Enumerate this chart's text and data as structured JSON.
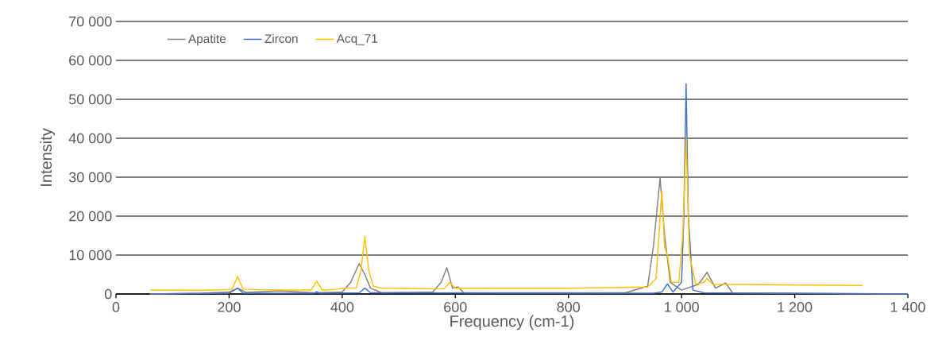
{
  "chart_data": {
    "type": "line",
    "xlabel": "Frequency (cm-1)",
    "ylabel": "Intensity",
    "xlim": [
      0,
      1400
    ],
    "ylim": [
      0,
      70000
    ],
    "xticks": [
      0,
      200,
      400,
      600,
      800,
      {
        "value": 1000,
        "label": "1 000"
      },
      {
        "value": 1200,
        "label": "1 200"
      },
      {
        "value": 1400,
        "label": "1 400"
      }
    ],
    "yticks": [
      0,
      {
        "value": 10000,
        "label": "10 000"
      },
      {
        "value": 20000,
        "label": "20 000"
      },
      {
        "value": 30000,
        "label": "30 000"
      },
      {
        "value": 40000,
        "label": "40 000"
      },
      {
        "value": 50000,
        "label": "50 000"
      },
      {
        "value": 60000,
        "label": "60 000"
      },
      {
        "value": 70000,
        "label": "70 000"
      }
    ],
    "grid": "y",
    "legend": "top left",
    "series": [
      {
        "name": "Apatite",
        "color": "#808080",
        "x": [
          60,
          150,
          200,
          215,
          230,
          290,
          350,
          400,
          415,
          430,
          440,
          450,
          470,
          560,
          575,
          585,
          595,
          605,
          615,
          900,
          940,
          950,
          962,
          970,
          980,
          1000,
          1030,
          1045,
          1060,
          1078,
          1090,
          1400
        ],
        "values": [
          0,
          200,
          500,
          1500,
          400,
          800,
          300,
          500,
          3000,
          7800,
          5000,
          1500,
          300,
          500,
          3000,
          6800,
          1500,
          1800,
          300,
          300,
          2000,
          12000,
          29800,
          15000,
          3000,
          1000,
          2500,
          5600,
          1500,
          2800,
          300,
          0
        ]
      },
      {
        "name": "Zircon",
        "color": "#4472c4",
        "x": [
          60,
          200,
          215,
          225,
          350,
          355,
          360,
          430,
          440,
          450,
          950,
          965,
          975,
          985,
          1000,
          1004,
          1008,
          1012,
          1020,
          1040,
          1400
        ],
        "values": [
          0,
          200,
          1500,
          200,
          200,
          600,
          200,
          300,
          1500,
          300,
          200,
          500,
          2600,
          500,
          3000,
          20000,
          54000,
          20000,
          1000,
          300,
          0
        ]
      },
      {
        "name": "Acq_71",
        "color": "#ffc000",
        "x": [
          60,
          150,
          205,
          215,
          225,
          300,
          345,
          355,
          365,
          390,
          400,
          425,
          433,
          440,
          447,
          455,
          470,
          580,
          590,
          600,
          800,
          940,
          955,
          965,
          970,
          975,
          982,
          995,
          1002,
          1008,
          1014,
          1025,
          1040,
          1045,
          1055,
          1320
        ],
        "values": [
          1000,
          900,
          1200,
          4500,
          1200,
          1000,
          1000,
          3300,
          1000,
          1200,
          1500,
          1600,
          6000,
          14800,
          6000,
          2000,
          1500,
          1300,
          3000,
          1500,
          1500,
          1800,
          4000,
          26500,
          12000,
          10000,
          3000,
          3000,
          15000,
          40000,
          10000,
          2500,
          3000,
          4000,
          2500,
          2200
        ]
      }
    ]
  }
}
